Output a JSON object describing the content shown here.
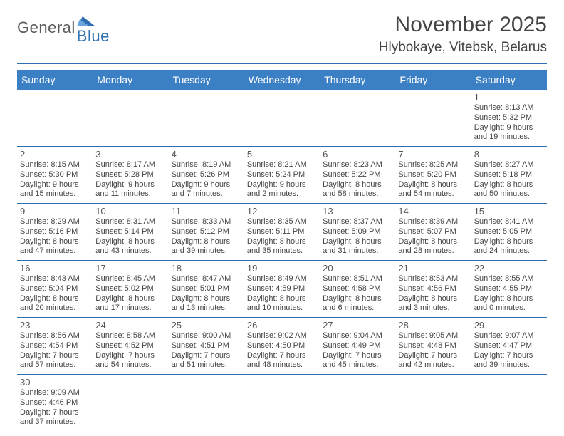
{
  "logo": {
    "part1": "General",
    "part2": "Blue"
  },
  "title": "November 2025",
  "subtitle": "Hlybokaye, Vitebsk, Belarus",
  "colors": {
    "accent": "#3b7fc4",
    "rule": "#2e6fb0",
    "logoGray": "#5a5a5a",
    "logoBlue": "#2e6fb0"
  },
  "daysOfWeek": [
    "Sunday",
    "Monday",
    "Tuesday",
    "Wednesday",
    "Thursday",
    "Friday",
    "Saturday"
  ],
  "weeks": [
    [
      null,
      null,
      null,
      null,
      null,
      null,
      {
        "n": "1",
        "sunrise": "Sunrise: 8:13 AM",
        "sunset": "Sunset: 5:32 PM",
        "dl1": "Daylight: 9 hours",
        "dl2": "and 19 minutes."
      }
    ],
    [
      {
        "n": "2",
        "sunrise": "Sunrise: 8:15 AM",
        "sunset": "Sunset: 5:30 PM",
        "dl1": "Daylight: 9 hours",
        "dl2": "and 15 minutes."
      },
      {
        "n": "3",
        "sunrise": "Sunrise: 8:17 AM",
        "sunset": "Sunset: 5:28 PM",
        "dl1": "Daylight: 9 hours",
        "dl2": "and 11 minutes."
      },
      {
        "n": "4",
        "sunrise": "Sunrise: 8:19 AM",
        "sunset": "Sunset: 5:26 PM",
        "dl1": "Daylight: 9 hours",
        "dl2": "and 7 minutes."
      },
      {
        "n": "5",
        "sunrise": "Sunrise: 8:21 AM",
        "sunset": "Sunset: 5:24 PM",
        "dl1": "Daylight: 9 hours",
        "dl2": "and 2 minutes."
      },
      {
        "n": "6",
        "sunrise": "Sunrise: 8:23 AM",
        "sunset": "Sunset: 5:22 PM",
        "dl1": "Daylight: 8 hours",
        "dl2": "and 58 minutes."
      },
      {
        "n": "7",
        "sunrise": "Sunrise: 8:25 AM",
        "sunset": "Sunset: 5:20 PM",
        "dl1": "Daylight: 8 hours",
        "dl2": "and 54 minutes."
      },
      {
        "n": "8",
        "sunrise": "Sunrise: 8:27 AM",
        "sunset": "Sunset: 5:18 PM",
        "dl1": "Daylight: 8 hours",
        "dl2": "and 50 minutes."
      }
    ],
    [
      {
        "n": "9",
        "sunrise": "Sunrise: 8:29 AM",
        "sunset": "Sunset: 5:16 PM",
        "dl1": "Daylight: 8 hours",
        "dl2": "and 47 minutes."
      },
      {
        "n": "10",
        "sunrise": "Sunrise: 8:31 AM",
        "sunset": "Sunset: 5:14 PM",
        "dl1": "Daylight: 8 hours",
        "dl2": "and 43 minutes."
      },
      {
        "n": "11",
        "sunrise": "Sunrise: 8:33 AM",
        "sunset": "Sunset: 5:12 PM",
        "dl1": "Daylight: 8 hours",
        "dl2": "and 39 minutes."
      },
      {
        "n": "12",
        "sunrise": "Sunrise: 8:35 AM",
        "sunset": "Sunset: 5:11 PM",
        "dl1": "Daylight: 8 hours",
        "dl2": "and 35 minutes."
      },
      {
        "n": "13",
        "sunrise": "Sunrise: 8:37 AM",
        "sunset": "Sunset: 5:09 PM",
        "dl1": "Daylight: 8 hours",
        "dl2": "and 31 minutes."
      },
      {
        "n": "14",
        "sunrise": "Sunrise: 8:39 AM",
        "sunset": "Sunset: 5:07 PM",
        "dl1": "Daylight: 8 hours",
        "dl2": "and 28 minutes."
      },
      {
        "n": "15",
        "sunrise": "Sunrise: 8:41 AM",
        "sunset": "Sunset: 5:05 PM",
        "dl1": "Daylight: 8 hours",
        "dl2": "and 24 minutes."
      }
    ],
    [
      {
        "n": "16",
        "sunrise": "Sunrise: 8:43 AM",
        "sunset": "Sunset: 5:04 PM",
        "dl1": "Daylight: 8 hours",
        "dl2": "and 20 minutes."
      },
      {
        "n": "17",
        "sunrise": "Sunrise: 8:45 AM",
        "sunset": "Sunset: 5:02 PM",
        "dl1": "Daylight: 8 hours",
        "dl2": "and 17 minutes."
      },
      {
        "n": "18",
        "sunrise": "Sunrise: 8:47 AM",
        "sunset": "Sunset: 5:01 PM",
        "dl1": "Daylight: 8 hours",
        "dl2": "and 13 minutes."
      },
      {
        "n": "19",
        "sunrise": "Sunrise: 8:49 AM",
        "sunset": "Sunset: 4:59 PM",
        "dl1": "Daylight: 8 hours",
        "dl2": "and 10 minutes."
      },
      {
        "n": "20",
        "sunrise": "Sunrise: 8:51 AM",
        "sunset": "Sunset: 4:58 PM",
        "dl1": "Daylight: 8 hours",
        "dl2": "and 6 minutes."
      },
      {
        "n": "21",
        "sunrise": "Sunrise: 8:53 AM",
        "sunset": "Sunset: 4:56 PM",
        "dl1": "Daylight: 8 hours",
        "dl2": "and 3 minutes."
      },
      {
        "n": "22",
        "sunrise": "Sunrise: 8:55 AM",
        "sunset": "Sunset: 4:55 PM",
        "dl1": "Daylight: 8 hours",
        "dl2": "and 0 minutes."
      }
    ],
    [
      {
        "n": "23",
        "sunrise": "Sunrise: 8:56 AM",
        "sunset": "Sunset: 4:54 PM",
        "dl1": "Daylight: 7 hours",
        "dl2": "and 57 minutes."
      },
      {
        "n": "24",
        "sunrise": "Sunrise: 8:58 AM",
        "sunset": "Sunset: 4:52 PM",
        "dl1": "Daylight: 7 hours",
        "dl2": "and 54 minutes."
      },
      {
        "n": "25",
        "sunrise": "Sunrise: 9:00 AM",
        "sunset": "Sunset: 4:51 PM",
        "dl1": "Daylight: 7 hours",
        "dl2": "and 51 minutes."
      },
      {
        "n": "26",
        "sunrise": "Sunrise: 9:02 AM",
        "sunset": "Sunset: 4:50 PM",
        "dl1": "Daylight: 7 hours",
        "dl2": "and 48 minutes."
      },
      {
        "n": "27",
        "sunrise": "Sunrise: 9:04 AM",
        "sunset": "Sunset: 4:49 PM",
        "dl1": "Daylight: 7 hours",
        "dl2": "and 45 minutes."
      },
      {
        "n": "28",
        "sunrise": "Sunrise: 9:05 AM",
        "sunset": "Sunset: 4:48 PM",
        "dl1": "Daylight: 7 hours",
        "dl2": "and 42 minutes."
      },
      {
        "n": "29",
        "sunrise": "Sunrise: 9:07 AM",
        "sunset": "Sunset: 4:47 PM",
        "dl1": "Daylight: 7 hours",
        "dl2": "and 39 minutes."
      }
    ],
    [
      {
        "n": "30",
        "sunrise": "Sunrise: 9:09 AM",
        "sunset": "Sunset: 4:46 PM",
        "dl1": "Daylight: 7 hours",
        "dl2": "and 37 minutes."
      },
      null,
      null,
      null,
      null,
      null,
      null
    ]
  ]
}
